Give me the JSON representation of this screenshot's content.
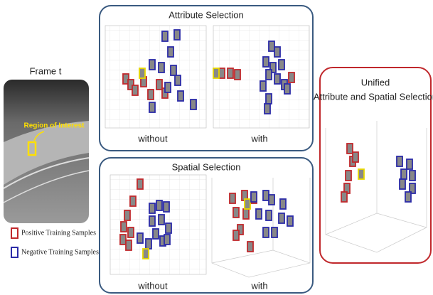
{
  "frame": {
    "title": "Frame t",
    "roi_label": "Region of Interest"
  },
  "attribute_selection": {
    "title": "Attribute Selection",
    "panels": [
      {
        "label": "without"
      },
      {
        "label": "with"
      }
    ]
  },
  "spatial_selection": {
    "title": "Spatial Selection",
    "panels": [
      {
        "label": "without"
      },
      {
        "label": "with"
      }
    ]
  },
  "unified": {
    "title_lines": [
      "Unified",
      "Attribute and Spatial Selection"
    ]
  },
  "legend": {
    "items": [
      {
        "label": "Positive Training Samples",
        "color": "#c0282c"
      },
      {
        "label": "Negative Training Samples",
        "color": "#2b2ba8"
      }
    ]
  }
}
